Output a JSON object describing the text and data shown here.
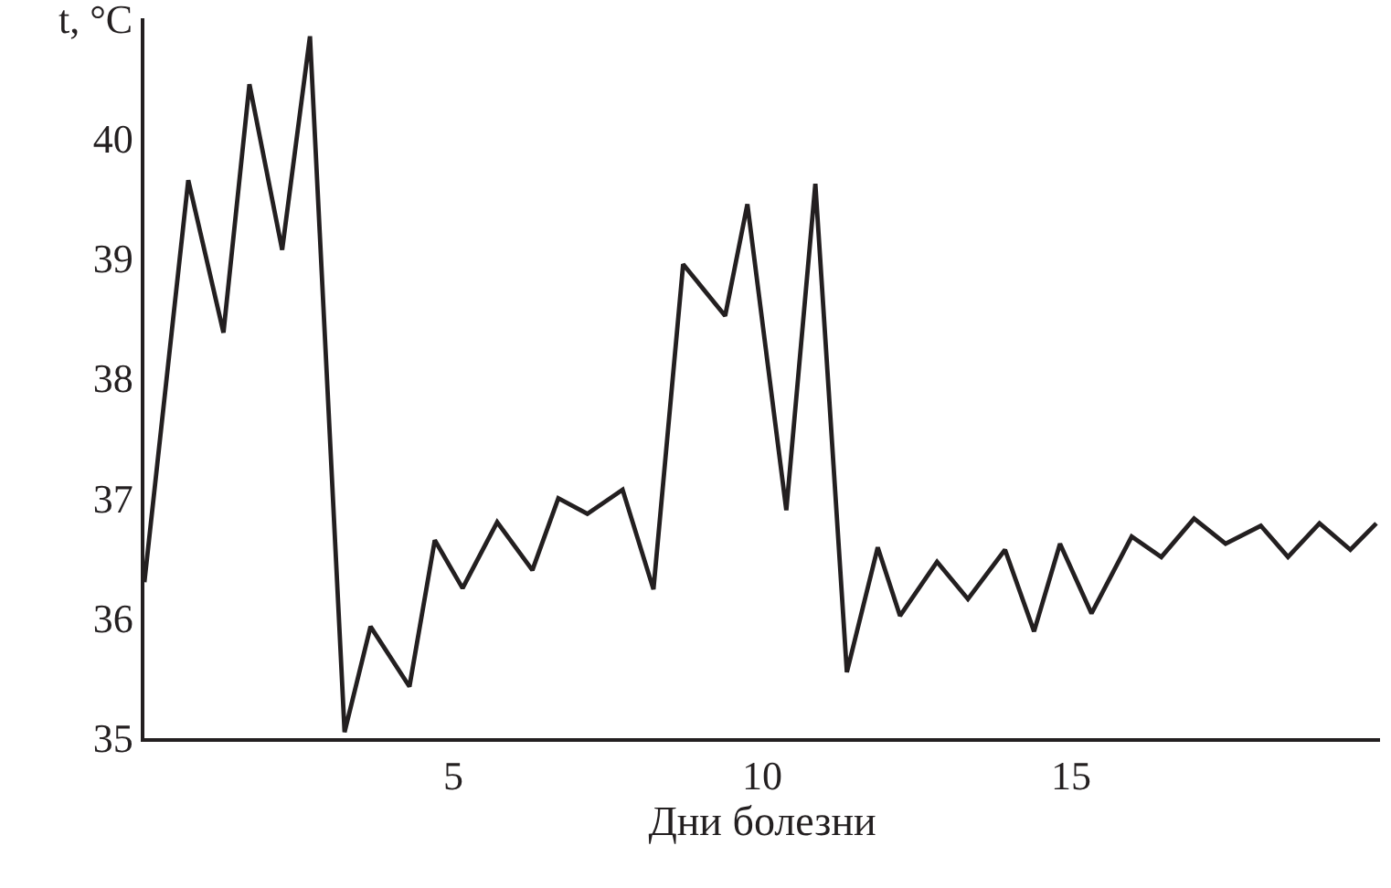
{
  "chart_data": {
    "type": "line",
    "xlabel": "Дни болезни",
    "ylabel": "t, °C",
    "x": [
      0,
      0.71,
      1.28,
      1.7,
      2.23,
      2.68,
      3.24,
      3.66,
      4.29,
      4.7,
      5.15,
      5.71,
      6.28,
      6.7,
      7.17,
      7.74,
      8.24,
      8.72,
      9.4,
      9.76,
      10.39,
      10.86,
      11.37,
      11.87,
      12.23,
      12.83,
      13.33,
      13.93,
      14.4,
      14.82,
      15.33,
      15.98,
      16.46,
      16.99,
      17.5,
      18.07,
      18.51,
      19.02,
      19.52,
      19.94
    ],
    "series": [
      {
        "color": "#231f20",
        "values": [
          36.3,
          39.65,
          38.38,
          40.45,
          39.07,
          40.85,
          35.05,
          35.93,
          35.43,
          36.65,
          36.25,
          36.8,
          36.4,
          37.0,
          36.87,
          37.07,
          36.24,
          38.95,
          38.52,
          39.45,
          36.9,
          39.62,
          35.55,
          36.59,
          36.02,
          36.47,
          36.16,
          36.57,
          35.89,
          36.62,
          36.04,
          36.68,
          36.51,
          36.83,
          36.62,
          36.77,
          36.51,
          36.79,
          36.57,
          36.79
        ]
      }
    ],
    "xlim": [
      0,
      20
    ],
    "ylim": [
      35,
      41
    ],
    "xticks": [
      5,
      10,
      15
    ],
    "yticks": [
      35,
      36,
      37,
      38,
      39,
      40
    ],
    "line_style": "solid"
  }
}
